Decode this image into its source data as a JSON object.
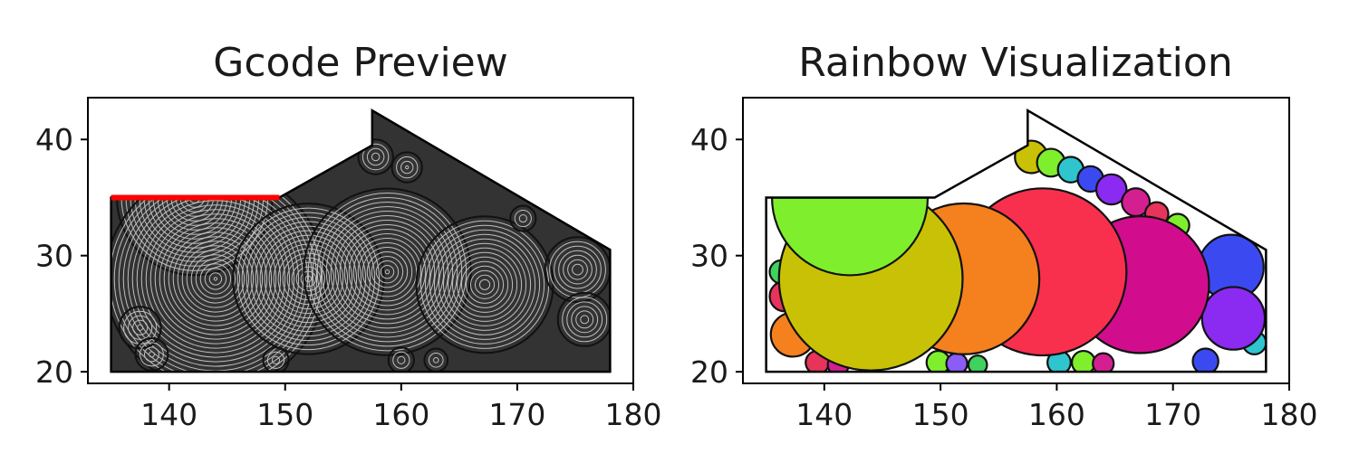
{
  "chart_data": [
    {
      "type": "scatter",
      "title": "Gcode Preview",
      "xlabel": "",
      "ylabel": "",
      "xlim": [
        133.0,
        180.0
      ],
      "ylim": [
        19.0,
        43.6
      ],
      "x_ticks": [
        140,
        150,
        160,
        170,
        180
      ],
      "y_ticks": [
        20,
        30,
        40
      ],
      "grid": false,
      "outline": [
        [
          135,
          35
        ],
        [
          149.5,
          35
        ],
        [
          157.5,
          39.5
        ],
        [
          157.5,
          42.5
        ],
        [
          178,
          30.5
        ],
        [
          178,
          20
        ],
        [
          135,
          20
        ]
      ],
      "highlight_segment": {
        "x": [
          135,
          149.5
        ],
        "y": [
          35,
          35
        ],
        "color": "#ff0000"
      },
      "concentric_color": "#333333",
      "circles": [
        {
          "cx": 142.2,
          "cy": 35,
          "r": 6.7,
          "half": "lower"
        },
        {
          "cx": 144,
          "cy": 28,
          "r": 9.5
        },
        {
          "cx": 152,
          "cy": 28,
          "r": 6.5
        },
        {
          "cx": 158.8,
          "cy": 28.6,
          "r": 7.2
        },
        {
          "cx": 167.2,
          "cy": 27.5,
          "r": 5.9
        },
        {
          "cx": 175.2,
          "cy": 28.8,
          "r": 2.8
        },
        {
          "cx": 175.8,
          "cy": 24.5,
          "r": 2.3
        },
        {
          "cx": 137.5,
          "cy": 23.8,
          "r": 1.8
        },
        {
          "cx": 138.5,
          "cy": 21.5,
          "r": 1.4
        },
        {
          "cx": 149.2,
          "cy": 21.0,
          "r": 1.1
        },
        {
          "cx": 160,
          "cy": 21.0,
          "r": 1.1
        },
        {
          "cx": 163,
          "cy": 21.0,
          "r": 1.0
        },
        {
          "cx": 157.8,
          "cy": 38.5,
          "r": 1.5
        },
        {
          "cx": 160.5,
          "cy": 37.6,
          "r": 1.3
        },
        {
          "cx": 170.5,
          "cy": 33.2,
          "r": 1.1
        }
      ]
    },
    {
      "type": "scatter",
      "title": "Rainbow Visualization",
      "xlabel": "",
      "ylabel": "",
      "xlim": [
        133.0,
        180.0
      ],
      "ylim": [
        19.0,
        43.6
      ],
      "x_ticks": [
        140,
        150,
        160,
        170,
        180
      ],
      "y_ticks": [
        20,
        30,
        40
      ],
      "grid": false,
      "outline": [
        [
          135,
          35
        ],
        [
          149.5,
          35
        ],
        [
          157.5,
          39.5
        ],
        [
          157.5,
          42.5
        ],
        [
          178,
          30.5
        ],
        [
          178,
          20
        ],
        [
          135,
          20
        ]
      ],
      "circles": [
        {
          "cx": 137.3,
          "cy": 23.2,
          "r": 1.9,
          "color": "#f5801e"
        },
        {
          "cx": 136.6,
          "cy": 26.5,
          "r": 1.3,
          "color": "#e8335a"
        },
        {
          "cx": 136.3,
          "cy": 28.6,
          "r": 1.0,
          "color": "#3fd25e"
        },
        {
          "cx": 139.4,
          "cy": 20.8,
          "r": 1.0,
          "color": "#e8335a"
        },
        {
          "cx": 141.2,
          "cy": 20.6,
          "r": 0.9,
          "color": "#d41f91"
        },
        {
          "cx": 149.8,
          "cy": 20.8,
          "r": 1.0,
          "color": "#7fef2d"
        },
        {
          "cx": 151.4,
          "cy": 20.7,
          "r": 0.9,
          "color": "#8b5cf6"
        },
        {
          "cx": 153.2,
          "cy": 20.6,
          "r": 0.8,
          "color": "#3fd25e"
        },
        {
          "cx": 160.2,
          "cy": 20.8,
          "r": 1.0,
          "color": "#2ec5cf"
        },
        {
          "cx": 162.3,
          "cy": 20.8,
          "r": 1.0,
          "color": "#7fef2d"
        },
        {
          "cx": 164.0,
          "cy": 20.7,
          "r": 0.9,
          "color": "#d41f91"
        },
        {
          "cx": 172.8,
          "cy": 20.9,
          "r": 1.1,
          "color": "#3b4af0"
        },
        {
          "cx": 177.0,
          "cy": 22.5,
          "r": 1.0,
          "color": "#2ec5cf"
        },
        {
          "cx": 157.8,
          "cy": 38.5,
          "r": 1.4,
          "color": "#c9c106"
        },
        {
          "cx": 159.5,
          "cy": 38.0,
          "r": 1.2,
          "color": "#7fef2d"
        },
        {
          "cx": 161.2,
          "cy": 37.4,
          "r": 1.1,
          "color": "#2ec5cf"
        },
        {
          "cx": 162.9,
          "cy": 36.6,
          "r": 1.1,
          "color": "#3b4af0"
        },
        {
          "cx": 164.7,
          "cy": 35.7,
          "r": 1.3,
          "color": "#8b2af0"
        },
        {
          "cx": 166.8,
          "cy": 34.6,
          "r": 1.2,
          "color": "#d41f91"
        },
        {
          "cx": 168.6,
          "cy": 33.6,
          "r": 1.0,
          "color": "#e8335a"
        },
        {
          "cx": 170.4,
          "cy": 32.6,
          "r": 1.0,
          "color": "#7fef2d"
        },
        {
          "cx": 175.0,
          "cy": 29.0,
          "r": 2.8,
          "color": "#3b4af0"
        },
        {
          "cx": 175.2,
          "cy": 24.6,
          "r": 2.7,
          "color": "#8b2af0"
        },
        {
          "cx": 167.2,
          "cy": 27.5,
          "r": 5.9,
          "color": "#d10d8e"
        },
        {
          "cx": 158.8,
          "cy": 28.6,
          "r": 7.2,
          "color": "#f92f4e"
        },
        {
          "cx": 152.0,
          "cy": 28.0,
          "r": 6.5,
          "color": "#f5801e"
        },
        {
          "cx": 144.0,
          "cy": 28.0,
          "r": 7.9,
          "color": "#c9c106"
        },
        {
          "cx": 142.2,
          "cy": 35.0,
          "r": 6.7,
          "color": "#7fef2d",
          "half": "lower"
        }
      ]
    }
  ]
}
